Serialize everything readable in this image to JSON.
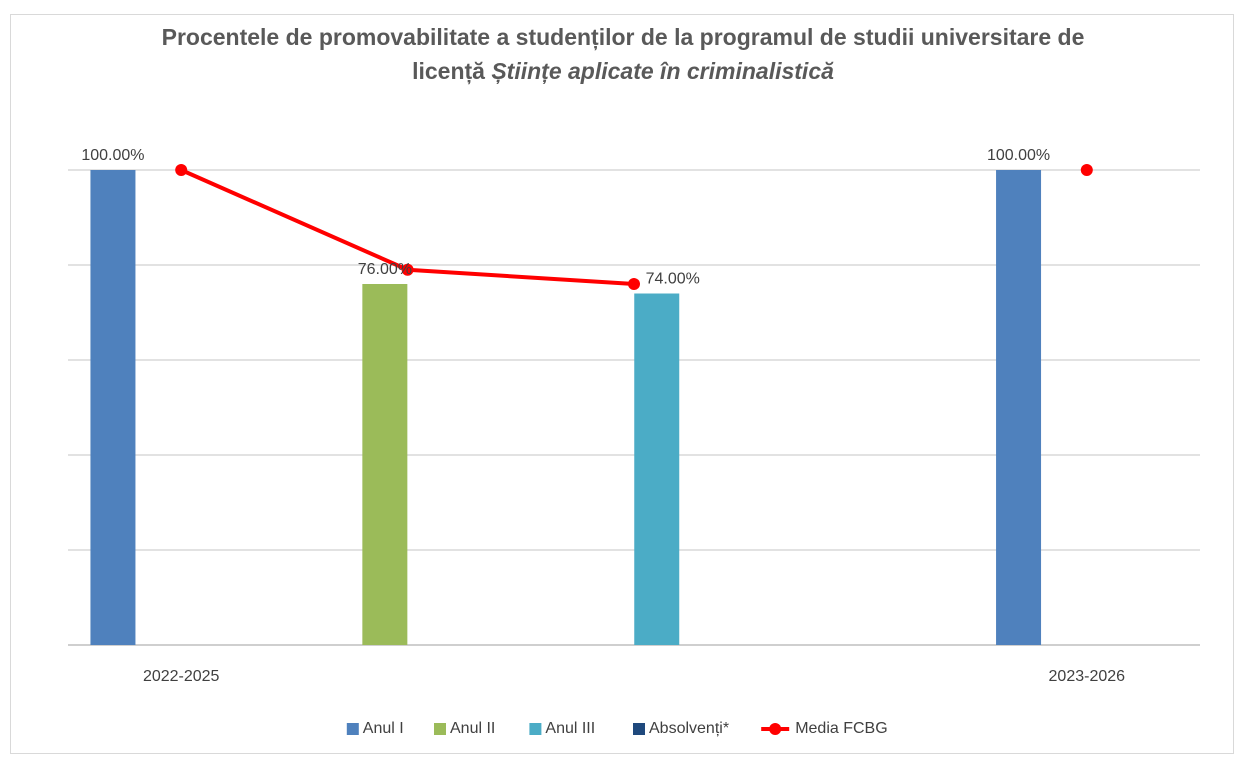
{
  "chart_data": {
    "type": "bar",
    "title": "Procentele de promovabilitate a studenților de la programul de studii universitare de licență",
    "title_italic": "Științe aplicate în criminalistică",
    "categories": [
      "2022-2025",
      null,
      null,
      null,
      "2023-2026"
    ],
    "series": [
      {
        "name": "Anul I",
        "color": "#4f81bd",
        "values": [
          100,
          null,
          null,
          null,
          100
        ],
        "value_labels": [
          "100.00%",
          null,
          null,
          null,
          "100.00%"
        ]
      },
      {
        "name": "Anul II",
        "color": "#9bbb59",
        "values": [
          null,
          76,
          null,
          null,
          null
        ],
        "value_labels": [
          null,
          "76.00%",
          null,
          null,
          null
        ]
      },
      {
        "name": "Anul III",
        "color": "#4bacc6",
        "values": [
          null,
          null,
          74,
          null,
          null
        ],
        "value_labels": [
          null,
          null,
          "74.00%",
          null,
          null
        ]
      },
      {
        "name": "Absolvenți*",
        "color": "#1f497d",
        "values": [
          null,
          null,
          null,
          null,
          null
        ]
      },
      {
        "name": "Media FCBG",
        "color": "#ff0000",
        "type": "line",
        "values": [
          100,
          79,
          76,
          null,
          100
        ]
      }
    ],
    "ylim": [
      0,
      100
    ],
    "yticks": [
      0,
      20,
      40,
      60,
      80,
      100
    ],
    "grid": true,
    "legend": "bottom"
  }
}
